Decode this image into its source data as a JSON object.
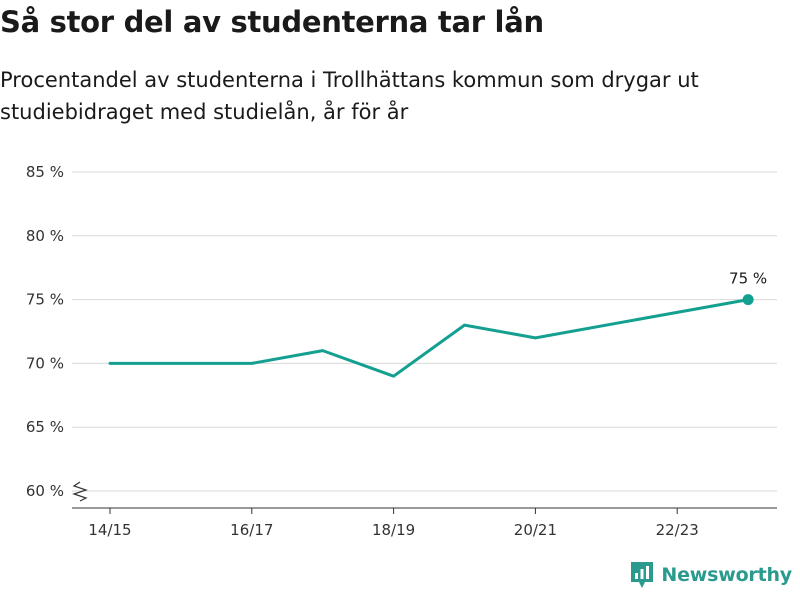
{
  "header": {
    "title": "Så stor del av studenterna tar lån",
    "subtitle": "Procentandel av studenterna i Trollhättans kommun som drygar ut studiebidraget med studielån, år för år"
  },
  "brand": {
    "name": "Newsworthy",
    "icon": "newsworthy-logo-icon",
    "color": "#2a9a8f"
  },
  "colors": {
    "series": "#14a090",
    "grid": "#d9d9d9",
    "axis": "#333333"
  },
  "chart_data": {
    "type": "line",
    "title": "Så stor del av studenterna tar lån",
    "subtitle": "Procentandel av studenterna i Trollhättans kommun som drygar ut studiebidraget med studielån, år för år",
    "x": [
      "14/15",
      "15/16",
      "16/17",
      "17/18",
      "18/19",
      "19/20",
      "20/21",
      "21/22",
      "22/23",
      "23/24"
    ],
    "x_tick_labels": [
      "14/15",
      "16/17",
      "18/19",
      "20/21",
      "22/23"
    ],
    "series": [
      {
        "values": [
          70,
          70,
          70,
          71,
          69,
          73,
          72,
          null,
          null,
          75
        ]
      }
    ],
    "ylim": [
      60,
      85
    ],
    "y_ticks": [
      60,
      65,
      70,
      75,
      80,
      85
    ],
    "y_tick_labels": [
      "60 %",
      "65 %",
      "70 %",
      "75 %",
      "80 %",
      "85 %"
    ],
    "y_axis_break": true,
    "grid": true,
    "data_labels": [
      {
        "x": "23/24",
        "text": "75 %"
      }
    ],
    "xlabel": "",
    "ylabel": ""
  }
}
